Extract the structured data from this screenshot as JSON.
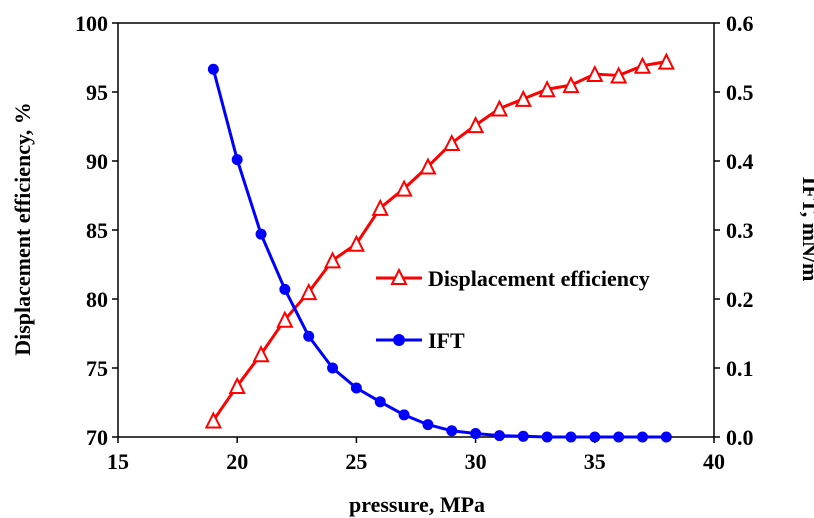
{
  "chart_data": {
    "type": "line",
    "xlabel": "pressure, MPa",
    "ylabel_left": "Displacement efficiency, %",
    "ylabel_right": "IFT, mN/m",
    "xlim": [
      15,
      40
    ],
    "ylim_left": [
      70,
      100
    ],
    "ylim_right": [
      0.0,
      0.6
    ],
    "x_ticks": [
      "15",
      "20",
      "25",
      "30",
      "35",
      "40"
    ],
    "y_left_ticks": [
      "70",
      "75",
      "80",
      "85",
      "90",
      "95",
      "100"
    ],
    "y_right_ticks": [
      "0.0",
      "0.1",
      "0.2",
      "0.3",
      "0.4",
      "0.5",
      "0.6"
    ],
    "grid": false,
    "legend_position": "center-right",
    "series": [
      {
        "name": "Displacement efficiency",
        "axis": "left",
        "color": "#ff0000",
        "marker": "open-triangle",
        "x": [
          19,
          20,
          21,
          22,
          23,
          24,
          25,
          26,
          27,
          28,
          29,
          30,
          31,
          32,
          33,
          34,
          35,
          36,
          37,
          38
        ],
        "values": [
          71.2,
          73.7,
          76.0,
          78.5,
          80.5,
          82.8,
          84.0,
          86.6,
          88.0,
          89.6,
          91.3,
          92.6,
          93.8,
          94.5,
          95.2,
          95.5,
          96.3,
          96.2,
          96.9,
          97.2
        ]
      },
      {
        "name": "IFT",
        "axis": "right",
        "color": "#0000ff",
        "marker": "filled-circle",
        "x": [
          19,
          20,
          21,
          22,
          23,
          24,
          25,
          26,
          27,
          28,
          29,
          30,
          31,
          32,
          33,
          34,
          35,
          36,
          37,
          38
        ],
        "values": [
          0.533,
          0.402,
          0.294,
          0.214,
          0.146,
          0.1,
          0.071,
          0.051,
          0.032,
          0.018,
          0.009,
          0.005,
          0.002,
          0.001,
          0.0,
          0.0,
          0.0,
          0.0,
          0.0,
          0.0
        ]
      }
    ]
  }
}
